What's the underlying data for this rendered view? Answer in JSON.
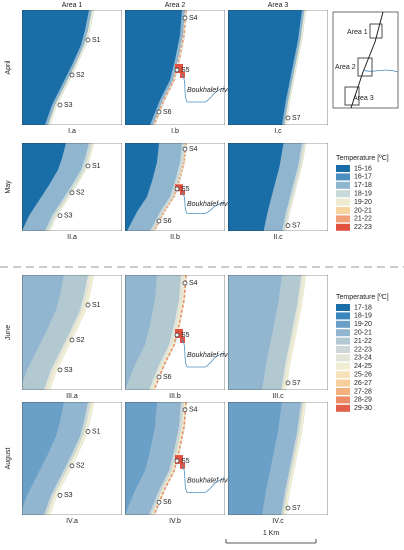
{
  "columns": [
    "Area 1",
    "Area 2",
    "Area 3"
  ],
  "rows": [
    {
      "month": "April",
      "panels": [
        {
          "label": "I.a",
          "stations": [
            "S1",
            "S2",
            "S3"
          ]
        },
        {
          "label": "I.b",
          "stations": [
            "S4",
            "S5",
            "S6"
          ],
          "river": "Boukhalef river"
        },
        {
          "label": "I.c",
          "stations": [
            "S7"
          ]
        }
      ]
    },
    {
      "month": "May",
      "panels": [
        {
          "label": "II.a",
          "stations": [
            "S1",
            "S2",
            "S3"
          ]
        },
        {
          "label": "II.b",
          "stations": [
            "S4",
            "S5",
            "S6"
          ],
          "river": "Boukhalef river"
        },
        {
          "label": "II.c",
          "stations": [
            "S7"
          ]
        }
      ]
    },
    {
      "month": "June",
      "panels": [
        {
          "label": "III.a",
          "stations": [
            "S1",
            "S2",
            "S3"
          ]
        },
        {
          "label": "III.b",
          "stations": [
            "S4",
            "S5",
            "S6"
          ],
          "river": "Boukhalef river"
        },
        {
          "label": "III.c",
          "stations": [
            "S7"
          ]
        }
      ]
    },
    {
      "month": "August",
      "panels": [
        {
          "label": "IV.a",
          "stations": [
            "S1",
            "S2",
            "S3"
          ]
        },
        {
          "label": "IV.b",
          "stations": [
            "S4",
            "S5",
            "S6"
          ],
          "river": "Boukhalef river"
        },
        {
          "label": "IV.c",
          "stations": [
            "S7"
          ]
        }
      ]
    }
  ],
  "inset": {
    "areas": [
      "Area 1",
      "Area 2",
      "Area 3"
    ]
  },
  "legends": [
    {
      "title": "Temperature [ºC]",
      "entries": [
        {
          "label": "15-16",
          "color": "#1a6ea8"
        },
        {
          "label": "16-17",
          "color": "#4b8fc0"
        },
        {
          "label": "17-18",
          "color": "#8fb5cf"
        },
        {
          "label": "18-19",
          "color": "#c9d8d8"
        },
        {
          "label": "19-20",
          "color": "#ecebd0"
        },
        {
          "label": "20-21",
          "color": "#f7d3a0"
        },
        {
          "label": "21-22",
          "color": "#f2a077"
        },
        {
          "label": "22-23",
          "color": "#e0523f"
        }
      ]
    },
    {
      "title": "Temperature [ºC]",
      "entries": [
        {
          "label": "17-18",
          "color": "#1a6ea8"
        },
        {
          "label": "18-19",
          "color": "#3b86bd"
        },
        {
          "label": "19-20",
          "color": "#6aa0c8"
        },
        {
          "label": "20-21",
          "color": "#92b6cf"
        },
        {
          "label": "21-22",
          "color": "#b3c9d2"
        },
        {
          "label": "22-23",
          "color": "#cdd8d6"
        },
        {
          "label": "23-24",
          "color": "#e1e4d6"
        },
        {
          "label": "24-25",
          "color": "#f0edd2"
        },
        {
          "label": "25-26",
          "color": "#f6e2b8"
        },
        {
          "label": "26-27",
          "color": "#f7cd9a"
        },
        {
          "label": "27-28",
          "color": "#f3b07f"
        },
        {
          "label": "28-29",
          "color": "#ec8c66"
        },
        {
          "label": "29-30",
          "color": "#e3604a"
        }
      ]
    }
  ],
  "scale_bar": "1 Km"
}
